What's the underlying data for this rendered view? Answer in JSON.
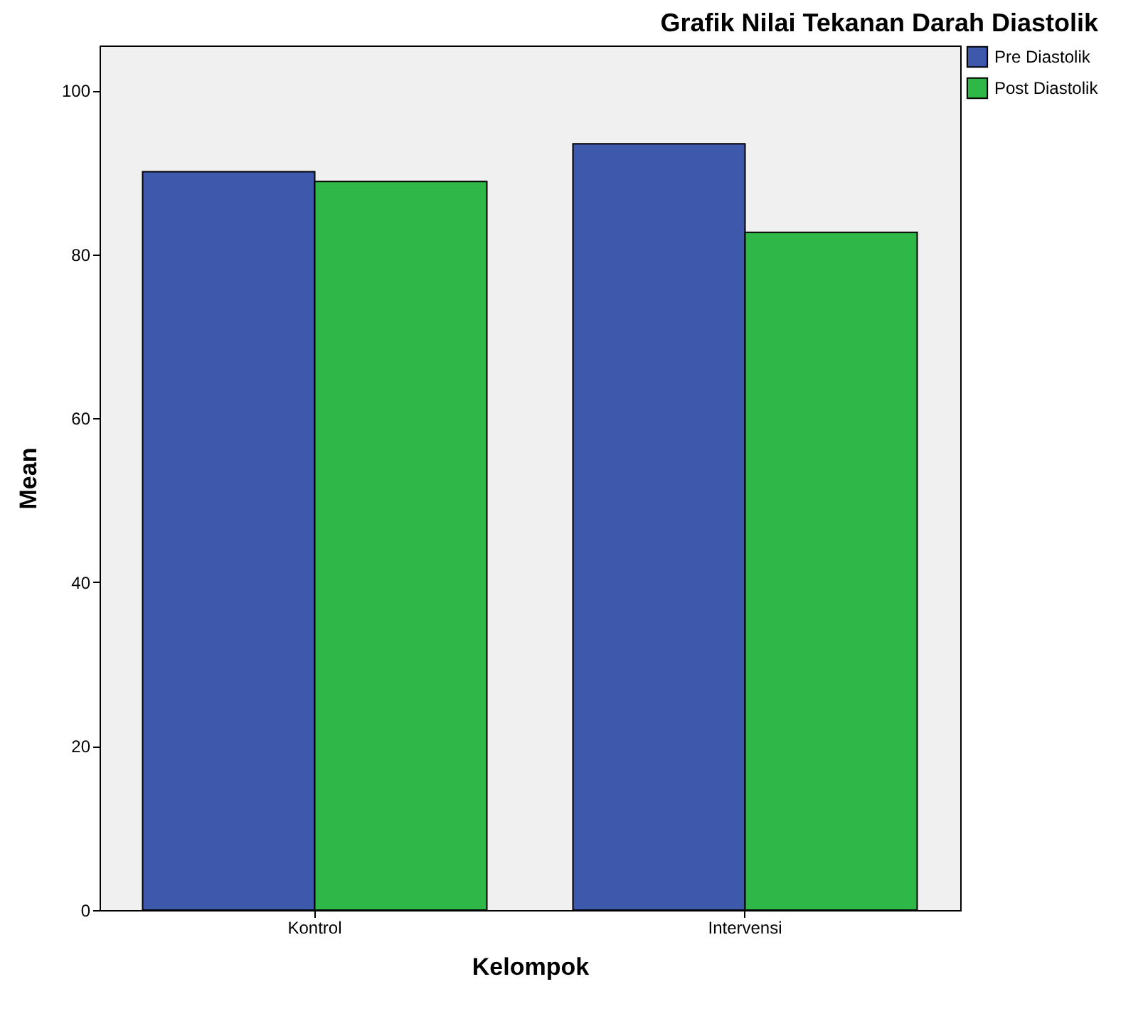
{
  "chart_data": {
    "type": "bar",
    "title": "Grafik Nilai Tekanan Darah Diastolik",
    "xlabel": "Kelompok",
    "ylabel": "Mean",
    "categories": [
      "Kontrol",
      "Intervensi"
    ],
    "series": [
      {
        "name": "Pre Diastolik",
        "color": "#3e58ac",
        "values": [
          90.1,
          93.5
        ]
      },
      {
        "name": "Post Diastolik",
        "color": "#2fb847",
        "values": [
          88.9,
          82.7
        ]
      }
    ],
    "ylim": [
      0,
      105.5
    ],
    "yticks": [
      0,
      20,
      40,
      60,
      80,
      100
    ],
    "grid": false,
    "legend": "top right"
  }
}
